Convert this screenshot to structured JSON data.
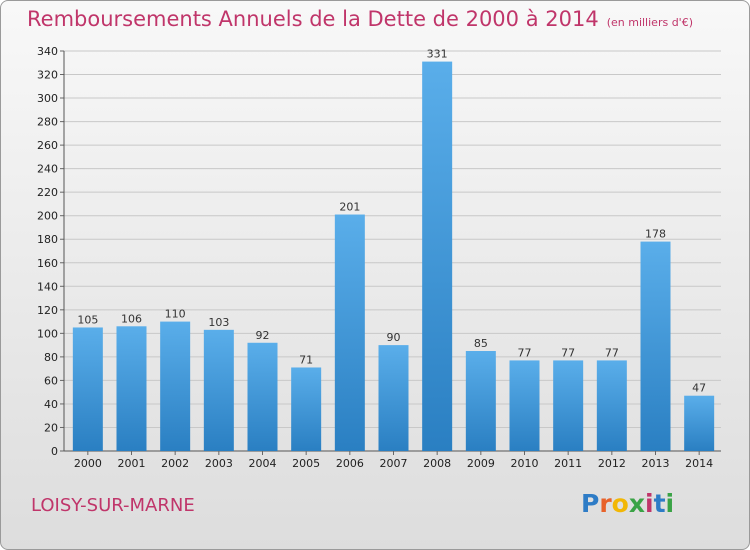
{
  "header": {
    "title": "Remboursements Annuels de la Dette de 2000 à 2014",
    "subtitle": "(en milliers d'€)"
  },
  "footer": {
    "commune": "LOISY-SUR-MARNE",
    "logo_text": "Proxiti",
    "logo_colors": [
      "#2e7cc6",
      "#e8622a",
      "#f2b705",
      "#3aa346",
      "#c0356a",
      "#2e7cc6",
      "#3aa346"
    ]
  },
  "chart_data": {
    "type": "bar",
    "categories": [
      "2000",
      "2001",
      "2002",
      "2003",
      "2004",
      "2005",
      "2006",
      "2007",
      "2008",
      "2009",
      "2010",
      "2011",
      "2012",
      "2013",
      "2014"
    ],
    "values": [
      105,
      106,
      110,
      103,
      92,
      71,
      201,
      90,
      331,
      85,
      77,
      77,
      77,
      178,
      47
    ],
    "ylim": [
      0,
      340
    ],
    "yticks": [
      0,
      20,
      40,
      60,
      80,
      100,
      120,
      140,
      160,
      180,
      200,
      220,
      240,
      260,
      280,
      300,
      320,
      340
    ],
    "grid": true,
    "bar_color": "#3f97dc",
    "xlabel": "",
    "ylabel": ""
  }
}
